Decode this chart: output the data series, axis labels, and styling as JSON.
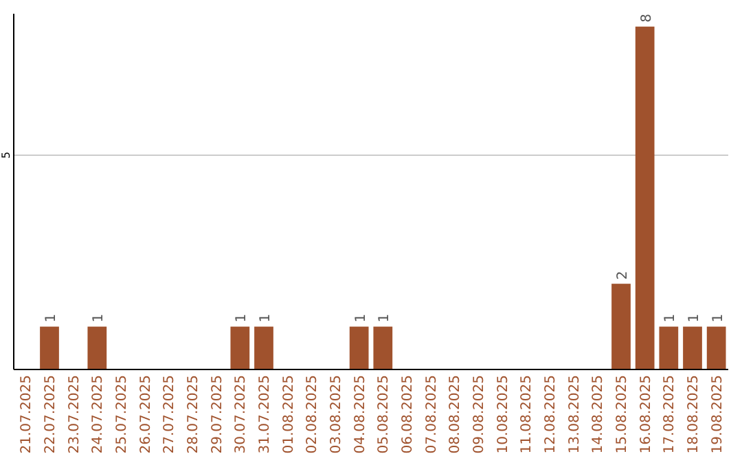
{
  "chart_data": {
    "type": "bar",
    "categories": [
      "21.07.2025",
      "22.07.2025",
      "23.07.2025",
      "24.07.2025",
      "25.07.2025",
      "26.07.2025",
      "27.07.2025",
      "28.07.2025",
      "29.07.2025",
      "30.07.2025",
      "31.07.2025",
      "01.08.2025",
      "02.08.2025",
      "03.08.2025",
      "04.08.2025",
      "05.08.2025",
      "06.08.2025",
      "07.08.2025",
      "08.08.2025",
      "09.08.2025",
      "10.08.2025",
      "11.08.2025",
      "12.08.2025",
      "13.08.2025",
      "14.08.2025",
      "15.08.2025",
      "16.08.2025",
      "17.08.2025",
      "18.08.2025",
      "19.08.2025"
    ],
    "values": [
      0,
      1,
      0,
      1,
      0,
      0,
      0,
      0,
      0,
      1,
      1,
      0,
      0,
      0,
      1,
      1,
      0,
      0,
      0,
      0,
      0,
      0,
      0,
      0,
      0,
      2,
      8,
      1,
      1,
      1
    ],
    "value_labels": [
      null,
      "1",
      null,
      "1",
      null,
      null,
      null,
      null,
      null,
      "1",
      "1",
      null,
      null,
      null,
      "1",
      "1",
      null,
      null,
      null,
      null,
      null,
      null,
      null,
      null,
      null,
      "2",
      "8",
      "1",
      "1",
      "1"
    ],
    "color": "#a0522d",
    "ylim": [
      0,
      8.3
    ],
    "yticks": [
      5
    ],
    "grid": "y"
  }
}
